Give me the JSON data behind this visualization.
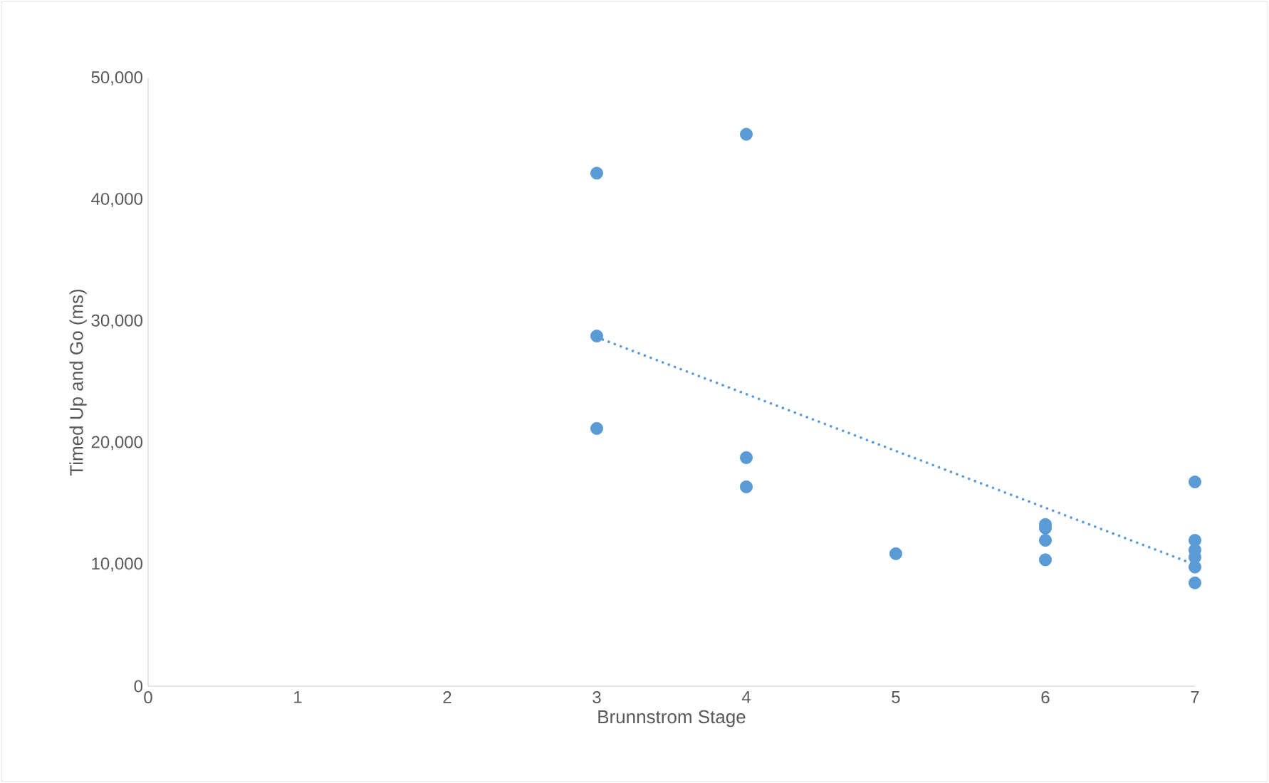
{
  "chart_data": {
    "type": "scatter",
    "xlabel": "Brunnstrom Stage",
    "ylabel": "Timed Up and Go (ms)",
    "xlim": [
      0,
      7
    ],
    "xticks": [
      0,
      1,
      2,
      3,
      4,
      5,
      6,
      7
    ],
    "ylim": [
      0,
      50000
    ],
    "yticks": [
      {
        "value": 0,
        "label": "0"
      },
      {
        "value": 10000,
        "label": "10,000"
      },
      {
        "value": 20000,
        "label": "20,000"
      },
      {
        "value": 30000,
        "label": "30,000"
      },
      {
        "value": 40000,
        "label": "40,000"
      },
      {
        "value": 50000,
        "label": "50,000"
      }
    ],
    "grid": false,
    "series": [
      {
        "color": "#5b9bd5",
        "marker": "circle",
        "x": [
          3,
          3,
          3,
          4,
          4,
          4,
          5,
          6,
          6,
          6,
          6,
          7,
          7,
          7,
          7,
          7,
          7
        ],
        "values": [
          42200,
          28800,
          21200,
          45400,
          18800,
          16400,
          10900,
          13300,
          13000,
          12000,
          10400,
          16800,
          12000,
          11200,
          10600,
          9800,
          8500
        ]
      },
      {
        "type": "line",
        "color": "#5b9bd5",
        "line_style": "dotted",
        "x": [
          3,
          7
        ],
        "values": [
          28700,
          10000
        ]
      }
    ]
  }
}
